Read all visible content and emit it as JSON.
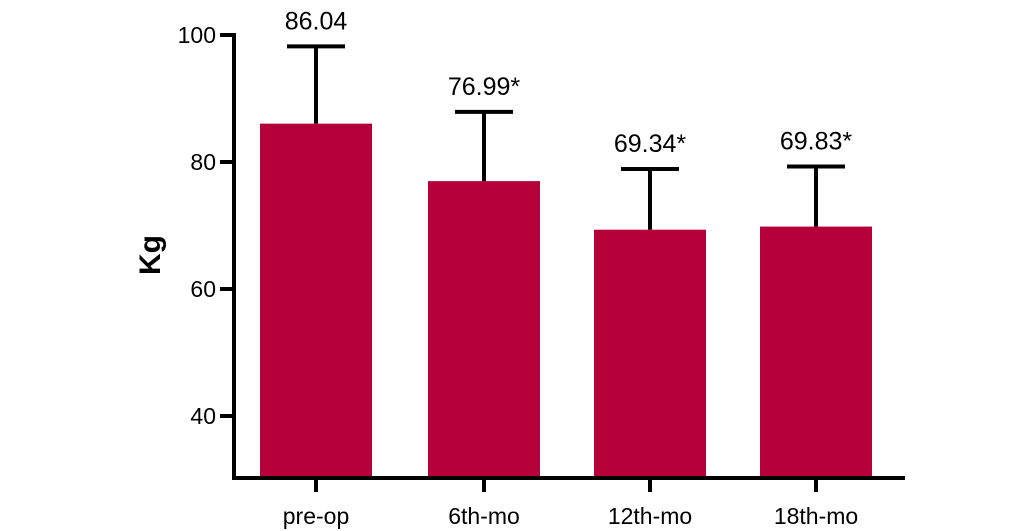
{
  "chart_data": {
    "type": "bar",
    "title": "",
    "xlabel": "",
    "ylabel": "Kg",
    "ylim": [
      30,
      100
    ],
    "yticks": [
      40,
      60,
      80,
      100
    ],
    "categories": [
      "pre-op",
      "6th-mo",
      "12th-mo",
      "18th-mo"
    ],
    "series": [
      {
        "values": [
          86.04,
          76.99,
          69.34,
          69.83
        ],
        "error_upper": [
          98.2,
          87.9,
          78.9,
          79.3
        ],
        "labels": [
          "86.04",
          "76.99*",
          "69.34*",
          "69.83*"
        ],
        "color": "#b5003a"
      }
    ],
    "grid": false,
    "legend": "none"
  }
}
